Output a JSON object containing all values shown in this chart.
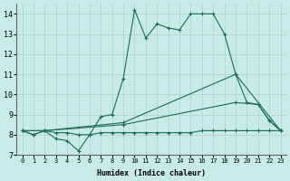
{
  "xlabel": "Humidex (Indice chaleur)",
  "xlim": [
    -0.5,
    23.5
  ],
  "ylim": [
    7,
    14.5
  ],
  "yticks": [
    7,
    8,
    9,
    10,
    11,
    12,
    13,
    14
  ],
  "xticks": [
    0,
    1,
    2,
    3,
    4,
    5,
    6,
    7,
    8,
    9,
    10,
    11,
    12,
    13,
    14,
    15,
    16,
    17,
    18,
    19,
    20,
    21,
    22,
    23
  ],
  "bg_color": "#c8eaea",
  "grid_color": "#b0d0d0",
  "line_color": "#1a6b5a",
  "line1_x": [
    0,
    1,
    2,
    3,
    4,
    5,
    6,
    7,
    8,
    9,
    10,
    11,
    12,
    13,
    14,
    15,
    16,
    17,
    18,
    19,
    20,
    21,
    22,
    23
  ],
  "line1_y": [
    8.2,
    8.0,
    8.2,
    7.8,
    7.7,
    7.2,
    8.0,
    8.9,
    9.0,
    10.8,
    14.2,
    12.8,
    13.5,
    13.3,
    13.2,
    14.0,
    14.0,
    14.0,
    13.0,
    11.0,
    9.6,
    9.5,
    8.7,
    8.2
  ],
  "line2_x": [
    0,
    2,
    9,
    19,
    23
  ],
  "line2_y": [
    8.2,
    8.2,
    8.6,
    11.0,
    8.2
  ],
  "line3_x": [
    0,
    2,
    9,
    19,
    21,
    22,
    23
  ],
  "line3_y": [
    8.2,
    8.2,
    8.5,
    9.6,
    9.5,
    8.7,
    8.2
  ],
  "line4_x": [
    0,
    1,
    2,
    3,
    4,
    5,
    6,
    7,
    8,
    9,
    10,
    11,
    12,
    13,
    14,
    15,
    16,
    17,
    18,
    19,
    20,
    21,
    22,
    23
  ],
  "line4_y": [
    8.2,
    8.0,
    8.2,
    8.1,
    8.1,
    8.0,
    8.0,
    8.1,
    8.1,
    8.1,
    8.1,
    8.1,
    8.1,
    8.1,
    8.1,
    8.1,
    8.2,
    8.2,
    8.2,
    8.2,
    8.2,
    8.2,
    8.2,
    8.2
  ]
}
